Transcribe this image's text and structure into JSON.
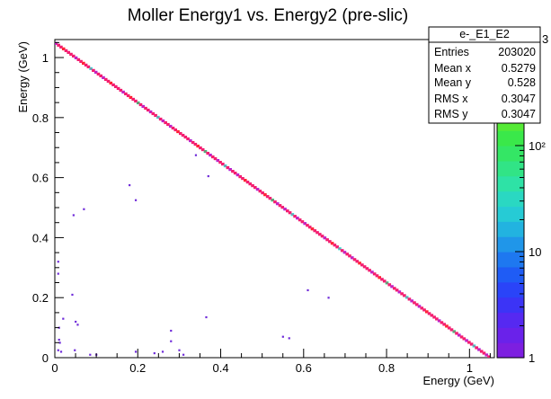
{
  "chart_data": {
    "type": "heatmap",
    "title": "Moller Energy1 vs. Energy2 (pre-slic)",
    "xlabel": "Energy (GeV)",
    "ylabel": "Energy (GeV)",
    "xlim": [
      0,
      1.06
    ],
    "ylim": [
      0,
      1.06
    ],
    "x_ticks": [
      0,
      0.2,
      0.4,
      0.6,
      0.8,
      1
    ],
    "x_tick_labels": [
      "0",
      "0.2",
      "0.4",
      "0.6",
      "0.8",
      "1"
    ],
    "y_ticks": [
      0,
      0.2,
      0.4,
      0.6,
      0.8,
      1
    ],
    "y_tick_labels": [
      "0",
      "0.2",
      "0.4",
      "0.6",
      "0.8",
      "1"
    ],
    "colorbar": {
      "scale": "log",
      "range": [
        1,
        1000
      ],
      "tick_values": [
        1,
        10,
        100
      ],
      "tick_labels": [
        "1",
        "10",
        "10²"
      ],
      "exponent_label": "3"
    },
    "diagonal_band": {
      "description_relation": "E1 + E2 = 1.05",
      "total": 1.05
    },
    "scatter_points": [
      [
        0.008,
        0.025
      ],
      [
        0.01,
        0.06
      ],
      [
        0.012,
        0.05
      ],
      [
        0.015,
        0.02
      ],
      [
        0.01,
        0.1
      ],
      [
        0.008,
        0.28
      ],
      [
        0.008,
        0.32
      ],
      [
        0.02,
        0.13
      ],
      [
        0.042,
        0.21
      ],
      [
        0.05,
        0.12
      ],
      [
        0.055,
        0.11
      ],
      [
        0.048,
        0.025
      ],
      [
        0.085,
        0.01
      ],
      [
        0.1,
        0.01
      ],
      [
        0.045,
        0.475
      ],
      [
        0.07,
        0.495
      ],
      [
        0.18,
        0.575
      ],
      [
        0.195,
        0.525
      ],
      [
        0.195,
        0.02
      ],
      [
        0.24,
        0.015
      ],
      [
        0.26,
        0.02
      ],
      [
        0.28,
        0.09
      ],
      [
        0.28,
        0.055
      ],
      [
        0.3,
        0.025
      ],
      [
        0.31,
        0.01
      ],
      [
        0.34,
        0.675
      ],
      [
        0.37,
        0.605
      ],
      [
        0.365,
        0.135
      ],
      [
        0.55,
        0.07
      ],
      [
        0.565,
        0.065
      ],
      [
        0.61,
        0.225
      ],
      [
        0.66,
        0.2
      ]
    ],
    "stats": {
      "name": "e-_E1_E2",
      "rows": [
        {
          "label": "Entries",
          "value": "203020"
        },
        {
          "label": "Mean x",
          "value": "0.5279"
        },
        {
          "label": "Mean y",
          "value": "0.528"
        },
        {
          "label": "RMS x",
          "value": "0.3047"
        },
        {
          "label": "RMS y",
          "value": "0.3047"
        }
      ]
    }
  }
}
